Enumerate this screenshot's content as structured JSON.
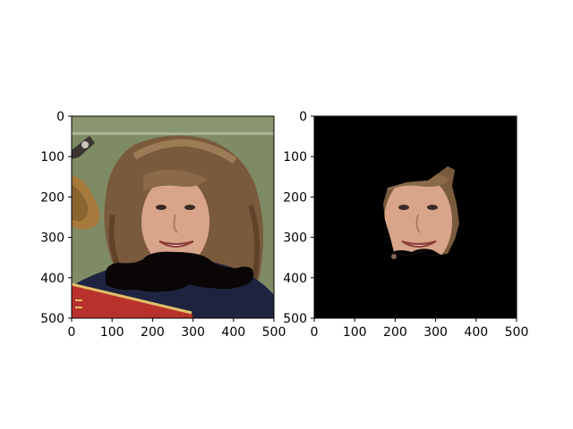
{
  "chart_data": [
    {
      "type": "image",
      "title": "",
      "xlabel": "",
      "ylabel": "",
      "xlim": [
        0,
        500
      ],
      "ylim": [
        500,
        0
      ],
      "x_ticks": [
        "0",
        "100",
        "200",
        "300",
        "400",
        "500"
      ],
      "y_ticks": [
        "0",
        "100",
        "200",
        "300",
        "400",
        "500"
      ],
      "content": "photo of a smiling woman with curly brown hair and a drawn-on black mustache, holding a red book"
    },
    {
      "type": "image",
      "title": "",
      "xlabel": "",
      "ylabel": "",
      "xlim": [
        0,
        500
      ],
      "ylim": [
        500,
        0
      ],
      "x_ticks": [
        "0",
        "100",
        "200",
        "300",
        "400",
        "500"
      ],
      "y_ticks": [
        "0",
        "100",
        "200",
        "300",
        "400",
        "500"
      ],
      "content": "same photo masked to black except the face region"
    }
  ],
  "colors": {
    "background_green": "#7e8b64",
    "hair": "#7a5a3c",
    "skin": "#d8a58a",
    "mustache": "#0a0606",
    "shirt": "#1e2440",
    "book": "#b8322b",
    "mask": "#000000"
  }
}
